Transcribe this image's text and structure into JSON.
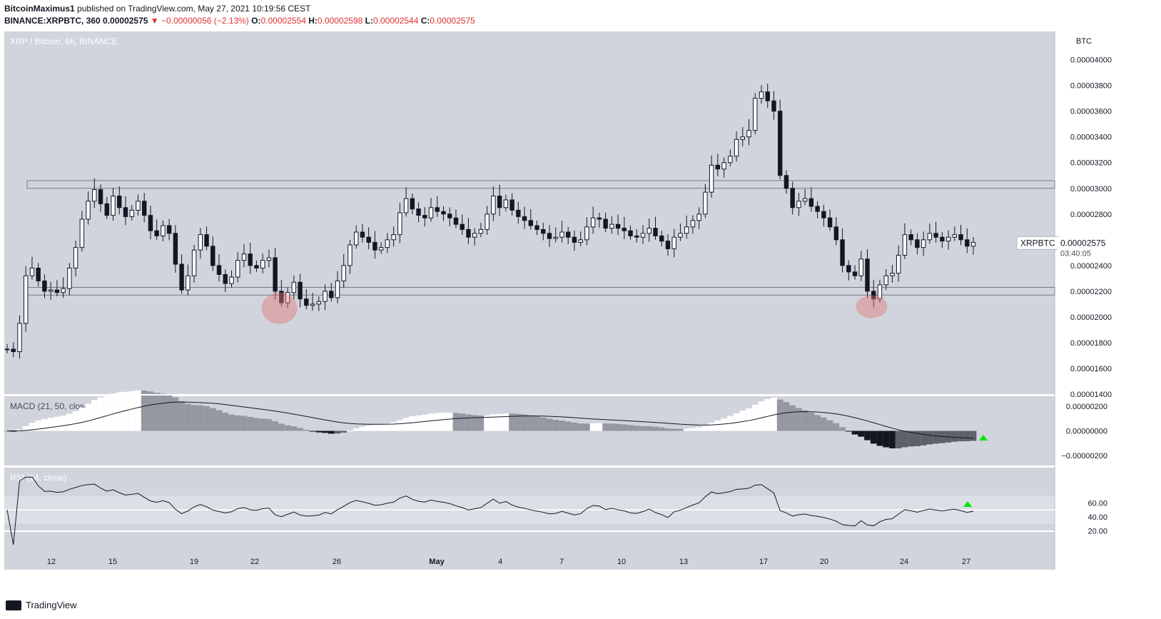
{
  "header": {
    "author": "BitcoinMaximus1",
    "published": "published on TradingView.com, May 27, 2021 10:19:56 CEST",
    "symbol": "BINANCE:XRPBTC, 360",
    "price": "0.00002575",
    "change_arrow": "▼",
    "change": "−0.00000056 (−2.13%)",
    "o_label": "O:",
    "o": "0.00002554",
    "h_label": "H:",
    "h": "0.00002598",
    "l_label": "L:",
    "l": "0.00002544",
    "c_label": "C:",
    "c": "0.00002575"
  },
  "footer": {
    "brand": "TradingView"
  },
  "colors": {
    "background": "#d1d4dc",
    "up": "#ffffff",
    "down": "#131722",
    "zone": "#787b86",
    "highlight": "#e07a7a",
    "arrow": "#00e600"
  },
  "chart_data": [
    {
      "type": "candlestick",
      "title": "XRP / Bitcoin, 6h, BINANCE",
      "unit": "BTC",
      "symbol_label": "XRPBTC",
      "last_price": "0.00002575",
      "countdown": "03:40:05",
      "ylim": [
        1.4e-05,
        4.22e-05
      ],
      "y_ticks": [
        "0.00001400",
        "0.00001600",
        "0.00001800",
        "0.00002000",
        "0.00002200",
        "0.00002400",
        "0.00002600",
        "0.00002800",
        "0.00003000",
        "0.00003200",
        "0.00003400",
        "0.00003600",
        "0.00003800",
        "0.00004000"
      ],
      "x_ticks": [
        "12",
        "15",
        "19",
        "22",
        "26",
        "May",
        "4",
        "7",
        "10",
        "13",
        "17",
        "20",
        "24",
        "27"
      ],
      "resistance_zone": [
        3e-05,
        3.06e-05
      ],
      "support_zone": [
        2.17e-05,
        2.23e-05
      ],
      "highlights": [
        "Apr 22",
        "May 23"
      ],
      "closes": [
        1.75e-05,
        1.73e-05,
        1.95e-05,
        2.32e-05,
        2.38e-05,
        2.28e-05,
        2.2e-05,
        2.21e-05,
        2.19e-05,
        2.22e-05,
        2.38e-05,
        2.54e-05,
        2.76e-05,
        2.9e-05,
        2.99e-05,
        2.88e-05,
        2.79e-05,
        2.94e-05,
        2.85e-05,
        2.78e-05,
        2.83e-05,
        2.9e-05,
        2.79e-05,
        2.67e-05,
        2.63e-05,
        2.71e-05,
        2.65e-05,
        2.41e-05,
        2.21e-05,
        2.32e-05,
        2.52e-05,
        2.64e-05,
        2.55e-05,
        2.4e-05,
        2.33e-05,
        2.26e-05,
        2.31e-05,
        2.44e-05,
        2.49e-05,
        2.4e-05,
        2.38e-05,
        2.44e-05,
        2.46e-05,
        2.2e-05,
        2.11e-05,
        2.19e-05,
        2.27e-05,
        2.14e-05,
        2.09e-05,
        2.1e-05,
        2.12e-05,
        2.2e-05,
        2.15e-05,
        2.28e-05,
        2.4e-05,
        2.56e-05,
        2.66e-05,
        2.62e-05,
        2.58e-05,
        2.52e-05,
        2.54e-05,
        2.6e-05,
        2.64e-05,
        2.81e-05,
        2.92e-05,
        2.84e-05,
        2.79e-05,
        2.77e-05,
        2.85e-05,
        2.82e-05,
        2.8e-05,
        2.77e-05,
        2.72e-05,
        2.68e-05,
        2.62e-05,
        2.65e-05,
        2.68e-05,
        2.8e-05,
        2.94e-05,
        2.85e-05,
        2.91e-05,
        2.83e-05,
        2.78e-05,
        2.75e-05,
        2.71e-05,
        2.68e-05,
        2.65e-05,
        2.61e-05,
        2.62e-05,
        2.66e-05,
        2.62e-05,
        2.58e-05,
        2.6e-05,
        2.7e-05,
        2.77e-05,
        2.76e-05,
        2.69e-05,
        2.72e-05,
        2.69e-05,
        2.67e-05,
        2.63e-05,
        2.62e-05,
        2.65e-05,
        2.69e-05,
        2.63e-05,
        2.59e-05,
        2.53e-05,
        2.62e-05,
        2.65e-05,
        2.7e-05,
        2.75e-05,
        2.8e-05,
        2.97e-05,
        3.18e-05,
        3.15e-05,
        3.2e-05,
        3.25e-05,
        3.38e-05,
        3.4e-05,
        3.45e-05,
        3.7e-05,
        3.75e-05,
        3.68e-05,
        3.6e-05,
        3.1e-05,
        3e-05,
        2.85e-05,
        2.9e-05,
        2.92e-05,
        2.86e-05,
        2.82e-05,
        2.77e-05,
        2.7e-05,
        2.6e-05,
        2.4e-05,
        2.35e-05,
        2.32e-05,
        2.45e-05,
        2.2e-05,
        2.14e-05,
        2.25e-05,
        2.32e-05,
        2.34e-05,
        2.48e-05,
        2.64e-05,
        2.6e-05,
        2.54e-05,
        2.6e-05,
        2.65e-05,
        2.62e-05,
        2.59e-05,
        2.62e-05,
        2.64e-05,
        2.6e-05,
        2.55e-05,
        2.58e-05
      ]
    },
    {
      "type": "macd",
      "title": "MACD (21, 50, close, 24)",
      "y_ticks": [
        "0.00000200",
        "0.00000000",
        "−0.00000200"
      ]
    },
    {
      "type": "line",
      "title": "RSI (14, close)",
      "y_ticks": [
        "60.00",
        "40.00",
        "20.00"
      ],
      "band": [
        30,
        70
      ],
      "midline": 50
    }
  ]
}
